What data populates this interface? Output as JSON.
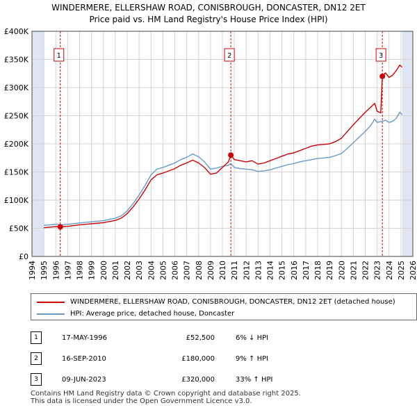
{
  "title_line1": "WINDERMERE, ELLERSHAW ROAD, CONISBROUGH, DONCASTER, DN12 2ET",
  "title_line2": "Price paid vs. HM Land Registry's House Price Index (HPI)",
  "colors": {
    "property": "#cc0000",
    "hpi": "#6699cc",
    "future_band": "#dde6f2",
    "marker_line": "#cc0000"
  },
  "chart_data": {
    "type": "line",
    "y_ticks": [
      "£0",
      "£50K",
      "£100K",
      "£150K",
      "£200K",
      "£250K",
      "£300K",
      "£350K",
      "£400K"
    ],
    "x_ticks": [
      "1994",
      "1995",
      "1996",
      "1997",
      "1998",
      "1999",
      "2000",
      "2001",
      "2002",
      "2003",
      "2004",
      "2005",
      "2006",
      "2007",
      "2008",
      "2009",
      "2010",
      "2011",
      "2012",
      "2013",
      "2014",
      "2015",
      "2016",
      "2017",
      "2018",
      "2019",
      "2020",
      "2021",
      "2022",
      "2023",
      "2024",
      "2025",
      "2026"
    ],
    "xlim": [
      1994,
      2026
    ],
    "ylim": [
      0,
      400000
    ],
    "grid": true,
    "shaded_ranges": [
      [
        1994,
        1995
      ],
      [
        2025.1,
        2026
      ]
    ],
    "series": [
      {
        "name": "WINDERMERE, ELLERSHAW ROAD, CONISBROUGH, DONCASTER, DN12 2ET (detached house)",
        "points": [
          [
            1995.0,
            51000
          ],
          [
            1995.5,
            52000
          ],
          [
            1996.0,
            53000
          ],
          [
            1996.38,
            52500
          ],
          [
            1997.0,
            53500
          ],
          [
            1998.0,
            56000
          ],
          [
            1999.0,
            58000
          ],
          [
            2000.0,
            60000
          ],
          [
            2001.0,
            64000
          ],
          [
            2001.5,
            68000
          ],
          [
            2002.0,
            76000
          ],
          [
            2002.5,
            88000
          ],
          [
            2003.0,
            102000
          ],
          [
            2003.5,
            118000
          ],
          [
            2004.0,
            136000
          ],
          [
            2004.5,
            145000
          ],
          [
            2005.0,
            148000
          ],
          [
            2005.5,
            152000
          ],
          [
            2006.0,
            156000
          ],
          [
            2006.5,
            162000
          ],
          [
            2007.0,
            166000
          ],
          [
            2007.5,
            171000
          ],
          [
            2008.0,
            166000
          ],
          [
            2008.5,
            158000
          ],
          [
            2009.0,
            146000
          ],
          [
            2009.5,
            148000
          ],
          [
            2010.0,
            158000
          ],
          [
            2010.5,
            168000
          ],
          [
            2010.71,
            180000
          ],
          [
            2011.0,
            172000
          ],
          [
            2011.5,
            170000
          ],
          [
            2012.0,
            168000
          ],
          [
            2012.5,
            170000
          ],
          [
            2013.0,
            164000
          ],
          [
            2013.5,
            166000
          ],
          [
            2014.0,
            170000
          ],
          [
            2014.5,
            174000
          ],
          [
            2015.0,
            178000
          ],
          [
            2015.5,
            182000
          ],
          [
            2016.0,
            184000
          ],
          [
            2016.5,
            188000
          ],
          [
            2017.0,
            192000
          ],
          [
            2017.5,
            196000
          ],
          [
            2018.0,
            198000
          ],
          [
            2018.5,
            199000
          ],
          [
            2019.0,
            200000
          ],
          [
            2019.5,
            204000
          ],
          [
            2020.0,
            210000
          ],
          [
            2020.5,
            222000
          ],
          [
            2021.0,
            234000
          ],
          [
            2021.5,
            245000
          ],
          [
            2022.0,
            256000
          ],
          [
            2022.5,
            266000
          ],
          [
            2022.8,
            272000
          ],
          [
            2023.0,
            258000
          ],
          [
            2023.3,
            255000
          ],
          [
            2023.44,
            320000
          ],
          [
            2023.7,
            326000
          ],
          [
            2024.0,
            318000
          ],
          [
            2024.3,
            322000
          ],
          [
            2024.6,
            330000
          ],
          [
            2024.9,
            340000
          ],
          [
            2025.1,
            336000
          ]
        ]
      },
      {
        "name": "HPI: Average price, detached house, Doncaster",
        "points": [
          [
            1995.0,
            55000
          ],
          [
            1995.5,
            56000
          ],
          [
            1996.0,
            57000
          ],
          [
            1996.38,
            56000
          ],
          [
            1997.0,
            57000
          ],
          [
            1998.0,
            59500
          ],
          [
            1999.0,
            61500
          ],
          [
            2000.0,
            63500
          ],
          [
            2001.0,
            68000
          ],
          [
            2001.5,
            72000
          ],
          [
            2002.0,
            81000
          ],
          [
            2002.5,
            94000
          ],
          [
            2003.0,
            109000
          ],
          [
            2003.5,
            126000
          ],
          [
            2004.0,
            145000
          ],
          [
            2004.5,
            155000
          ],
          [
            2005.0,
            158000
          ],
          [
            2005.5,
            162000
          ],
          [
            2006.0,
            166000
          ],
          [
            2006.5,
            172000
          ],
          [
            2007.0,
            176000
          ],
          [
            2007.5,
            182000
          ],
          [
            2008.0,
            177000
          ],
          [
            2008.5,
            168000
          ],
          [
            2009.0,
            155000
          ],
          [
            2009.5,
            157000
          ],
          [
            2010.0,
            160000
          ],
          [
            2010.5,
            162000
          ],
          [
            2010.71,
            165000
          ],
          [
            2011.0,
            158000
          ],
          [
            2011.5,
            156000
          ],
          [
            2012.0,
            155000
          ],
          [
            2012.5,
            154000
          ],
          [
            2013.0,
            151000
          ],
          [
            2013.5,
            152000
          ],
          [
            2014.0,
            154000
          ],
          [
            2014.5,
            157000
          ],
          [
            2015.0,
            160000
          ],
          [
            2015.5,
            163000
          ],
          [
            2016.0,
            165000
          ],
          [
            2016.5,
            168000
          ],
          [
            2017.0,
            170000
          ],
          [
            2017.5,
            172000
          ],
          [
            2018.0,
            174000
          ],
          [
            2018.5,
            175000
          ],
          [
            2019.0,
            176000
          ],
          [
            2019.5,
            179000
          ],
          [
            2020.0,
            183000
          ],
          [
            2020.5,
            192000
          ],
          [
            2021.0,
            202000
          ],
          [
            2021.5,
            212000
          ],
          [
            2022.0,
            222000
          ],
          [
            2022.5,
            234000
          ],
          [
            2022.8,
            244000
          ],
          [
            2023.0,
            238000
          ],
          [
            2023.44,
            240000
          ],
          [
            2023.7,
            242000
          ],
          [
            2024.0,
            238000
          ],
          [
            2024.3,
            240000
          ],
          [
            2024.6,
            245000
          ],
          [
            2024.9,
            256000
          ],
          [
            2025.1,
            252000
          ]
        ]
      }
    ],
    "sales": [
      {
        "label": "1",
        "x": 1996.38,
        "y": 52500
      },
      {
        "label": "2",
        "x": 2010.71,
        "y": 180000
      },
      {
        "label": "3",
        "x": 2023.44,
        "y": 320000
      }
    ]
  },
  "legend": {
    "property": "WINDERMERE, ELLERSHAW ROAD, CONISBROUGH, DONCASTER, DN12 2ET (detached house)",
    "hpi": "HPI: Average price, detached house, Doncaster"
  },
  "table": [
    {
      "num": "1",
      "date": "17-MAY-1996",
      "price": "£52,500",
      "hpi": "6% ↓ HPI"
    },
    {
      "num": "2",
      "date": "16-SEP-2010",
      "price": "£180,000",
      "hpi": "9% ↑ HPI"
    },
    {
      "num": "3",
      "date": "09-JUN-2023",
      "price": "£320,000",
      "hpi": "33% ↑ HPI"
    }
  ],
  "footer": {
    "line1": "Contains HM Land Registry data © Crown copyright and database right 2025.",
    "line2": "This data is licensed under the Open Government Licence v3.0."
  }
}
